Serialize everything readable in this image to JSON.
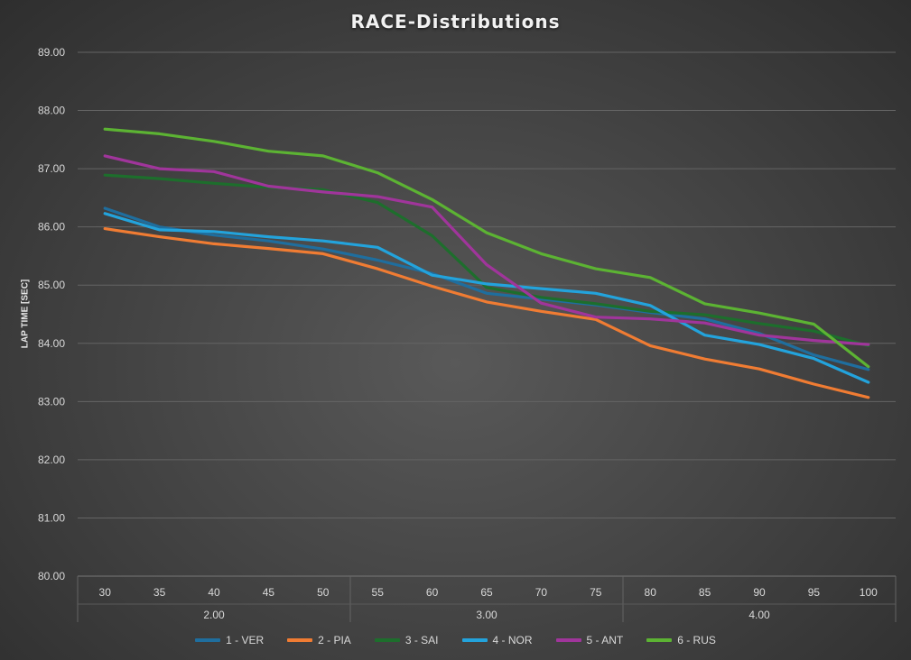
{
  "chart_data": {
    "type": "line",
    "title": "RACE-Distributions",
    "ylabel": "LAP TIME [SEC]",
    "xlabel": "",
    "ylim": [
      80,
      89
    ],
    "yticks": [
      "80.00",
      "81.00",
      "82.00",
      "83.00",
      "84.00",
      "85.00",
      "86.00",
      "87.00",
      "88.00",
      "89.00"
    ],
    "x": [
      "30",
      "35",
      "40",
      "45",
      "50",
      "55",
      "60",
      "65",
      "70",
      "75",
      "80",
      "85",
      "90",
      "95",
      "100"
    ],
    "groups": [
      {
        "label": "2.00",
        "span": 5
      },
      {
        "label": "3.00",
        "span": 5
      },
      {
        "label": "4.00",
        "span": 5
      }
    ],
    "grid": true,
    "legend_position": "bottom",
    "series": [
      {
        "name": "1 - VER",
        "color": "#1f6e9e",
        "values": [
          86.32,
          86.0,
          85.86,
          85.76,
          85.62,
          85.43,
          85.2,
          84.86,
          84.76,
          84.66,
          84.53,
          84.42,
          84.17,
          83.8,
          83.55
        ]
      },
      {
        "name": "2 - PIA",
        "color": "#f07c33",
        "values": [
          85.97,
          85.83,
          85.71,
          85.63,
          85.54,
          85.28,
          84.98,
          84.71,
          84.55,
          84.41,
          83.96,
          83.73,
          83.56,
          83.3,
          83.07
        ]
      },
      {
        "name": "3 - SAI",
        "color": "#1d6e2c",
        "values": [
          86.89,
          86.83,
          86.75,
          86.68,
          86.64,
          86.42,
          85.85,
          84.96,
          84.79,
          84.68,
          84.55,
          84.49,
          84.34,
          84.21,
          83.96
        ]
      },
      {
        "name": "4 - NOR",
        "color": "#23a3dc",
        "values": [
          86.23,
          85.95,
          85.92,
          85.83,
          85.76,
          85.65,
          85.17,
          85.02,
          84.94,
          84.86,
          84.65,
          84.14,
          83.98,
          83.74,
          83.33
        ]
      },
      {
        "name": "5 - ANT",
        "color": "#a0359b",
        "values": [
          87.22,
          87.0,
          86.95,
          86.7,
          86.6,
          86.52,
          86.34,
          85.35,
          84.69,
          84.45,
          84.42,
          84.35,
          84.14,
          84.05,
          83.98
        ]
      },
      {
        "name": "6 - RUS",
        "color": "#5cb333",
        "values": [
          87.68,
          87.6,
          87.47,
          87.3,
          87.22,
          86.93,
          86.47,
          85.9,
          85.54,
          85.28,
          85.13,
          84.68,
          84.52,
          84.33,
          83.6
        ]
      }
    ]
  }
}
